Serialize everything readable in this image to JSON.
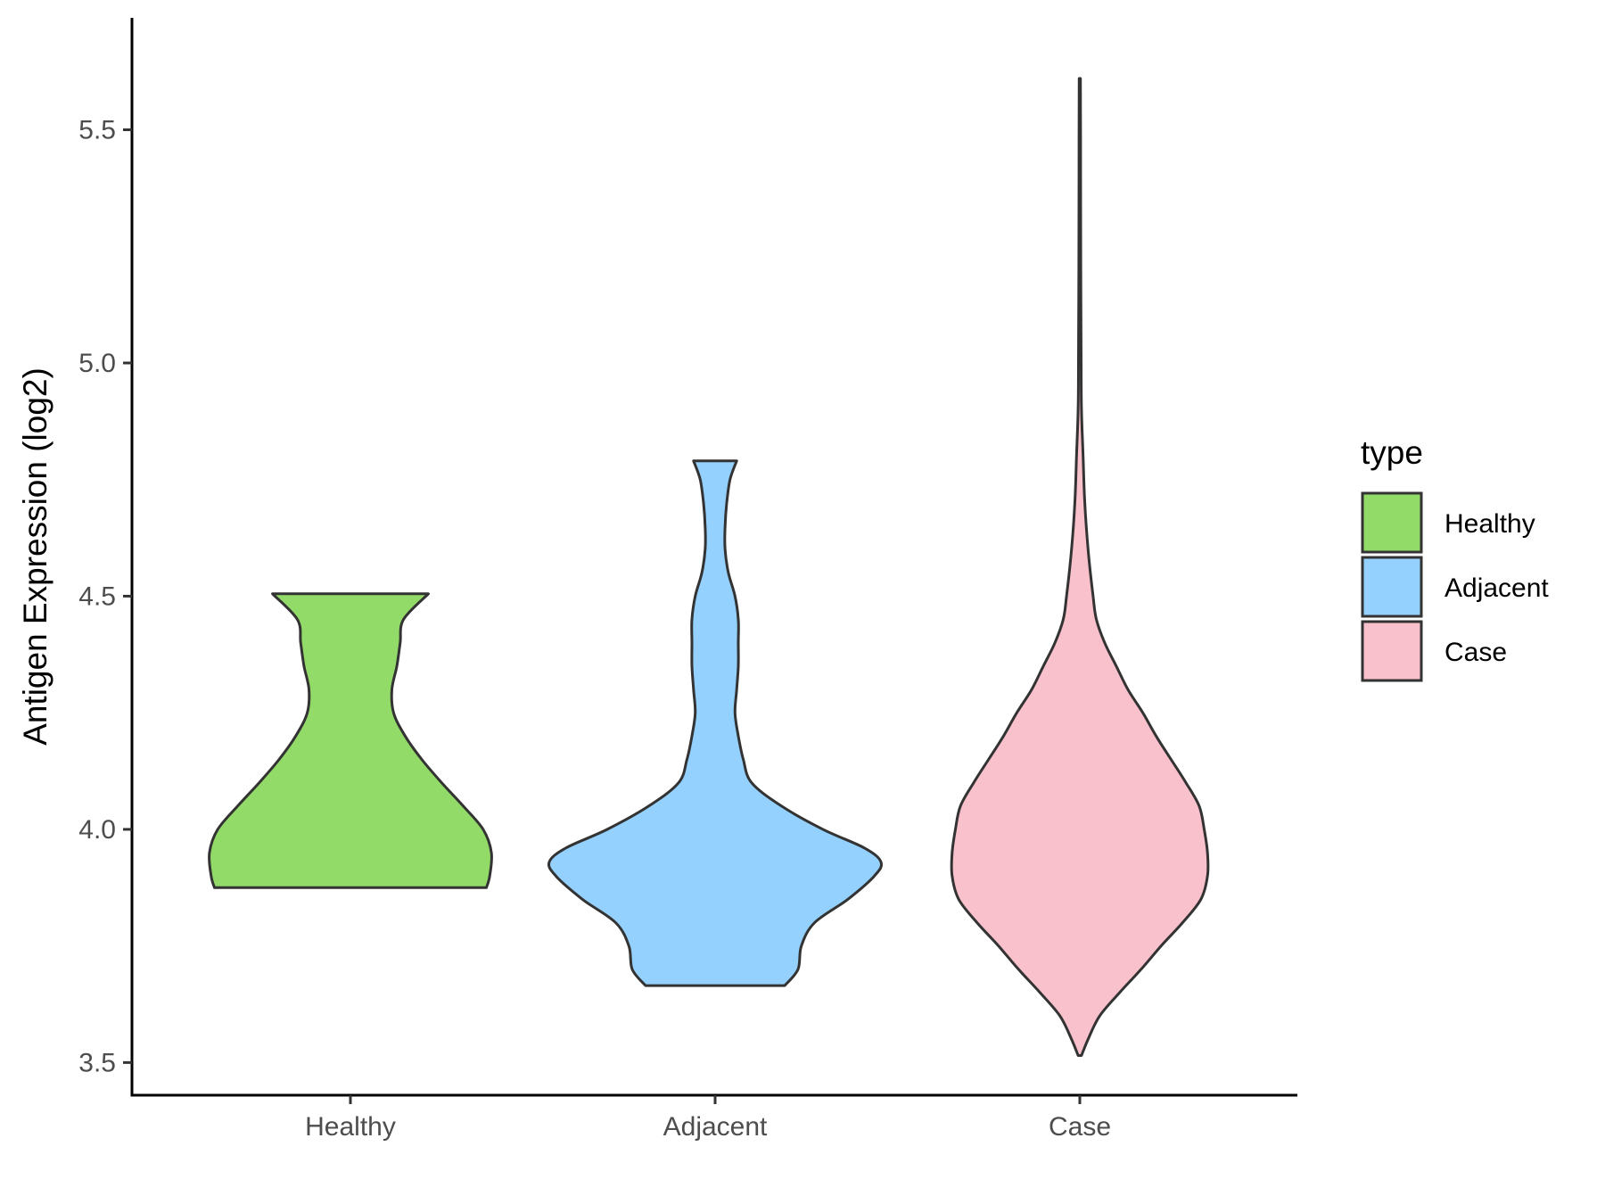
{
  "chart_data": {
    "type": "violin",
    "title": "",
    "xlabel": "",
    "ylabel": "Antigen Expression (log2)",
    "ylim": [
      3.43,
      5.74
    ],
    "yticks": [
      "3.5",
      "4.0",
      "4.5",
      "5.0",
      "5.5"
    ],
    "categories": [
      "Healthy",
      "Adjacent",
      "Case"
    ],
    "grid": false,
    "legend": {
      "title": "type",
      "position": "right",
      "entries": [
        {
          "label": "Healthy",
          "color": "#93db69"
        },
        {
          "label": "Adjacent",
          "color": "#94d1fe"
        },
        {
          "label": "Case",
          "color": "#f8c1cc"
        }
      ]
    },
    "series": [
      {
        "category": "Healthy",
        "color": "#93db69",
        "min": 3.875,
        "max": 4.505,
        "density_profile": [
          [
            3.875,
            0.82
          ],
          [
            3.9,
            0.84
          ],
          [
            3.95,
            0.85
          ],
          [
            4.0,
            0.8
          ],
          [
            4.05,
            0.68
          ],
          [
            4.1,
            0.55
          ],
          [
            4.15,
            0.43
          ],
          [
            4.2,
            0.33
          ],
          [
            4.25,
            0.26
          ],
          [
            4.3,
            0.25
          ],
          [
            4.35,
            0.28
          ],
          [
            4.4,
            0.3
          ],
          [
            4.45,
            0.32
          ],
          [
            4.505,
            0.47
          ]
        ]
      },
      {
        "category": "Adjacent",
        "color": "#94d1fe",
        "min": 3.665,
        "max": 4.79,
        "density_profile": [
          [
            3.665,
            0.42
          ],
          [
            3.7,
            0.5
          ],
          [
            3.75,
            0.52
          ],
          [
            3.8,
            0.6
          ],
          [
            3.85,
            0.8
          ],
          [
            3.9,
            0.96
          ],
          [
            3.93,
            1.0
          ],
          [
            3.96,
            0.9
          ],
          [
            4.0,
            0.65
          ],
          [
            4.05,
            0.4
          ],
          [
            4.1,
            0.22
          ],
          [
            4.15,
            0.17
          ],
          [
            4.2,
            0.14
          ],
          [
            4.25,
            0.12
          ],
          [
            4.3,
            0.13
          ],
          [
            4.35,
            0.14
          ],
          [
            4.4,
            0.14
          ],
          [
            4.45,
            0.14
          ],
          [
            4.5,
            0.12
          ],
          [
            4.55,
            0.08
          ],
          [
            4.6,
            0.06
          ],
          [
            4.65,
            0.06
          ],
          [
            4.7,
            0.07
          ],
          [
            4.75,
            0.09
          ],
          [
            4.79,
            0.13
          ]
        ]
      },
      {
        "category": "Case",
        "color": "#f8c1cc",
        "min": 3.515,
        "max": 5.61,
        "density_profile": [
          [
            3.515,
            0.01
          ],
          [
            3.55,
            0.05
          ],
          [
            3.6,
            0.12
          ],
          [
            3.65,
            0.24
          ],
          [
            3.7,
            0.37
          ],
          [
            3.75,
            0.49
          ],
          [
            3.8,
            0.62
          ],
          [
            3.85,
            0.73
          ],
          [
            3.9,
            0.77
          ],
          [
            3.95,
            0.77
          ],
          [
            4.0,
            0.75
          ],
          [
            4.05,
            0.72
          ],
          [
            4.1,
            0.64
          ],
          [
            4.15,
            0.55
          ],
          [
            4.2,
            0.46
          ],
          [
            4.25,
            0.38
          ],
          [
            4.3,
            0.29
          ],
          [
            4.35,
            0.22
          ],
          [
            4.4,
            0.15
          ],
          [
            4.45,
            0.1
          ],
          [
            4.5,
            0.08
          ],
          [
            4.6,
            0.05
          ],
          [
            4.7,
            0.03
          ],
          [
            4.8,
            0.02
          ],
          [
            4.9,
            0.01
          ],
          [
            5.0,
            0.008
          ],
          [
            5.2,
            0.006
          ],
          [
            5.4,
            0.005
          ],
          [
            5.61,
            0.004
          ]
        ]
      }
    ]
  }
}
